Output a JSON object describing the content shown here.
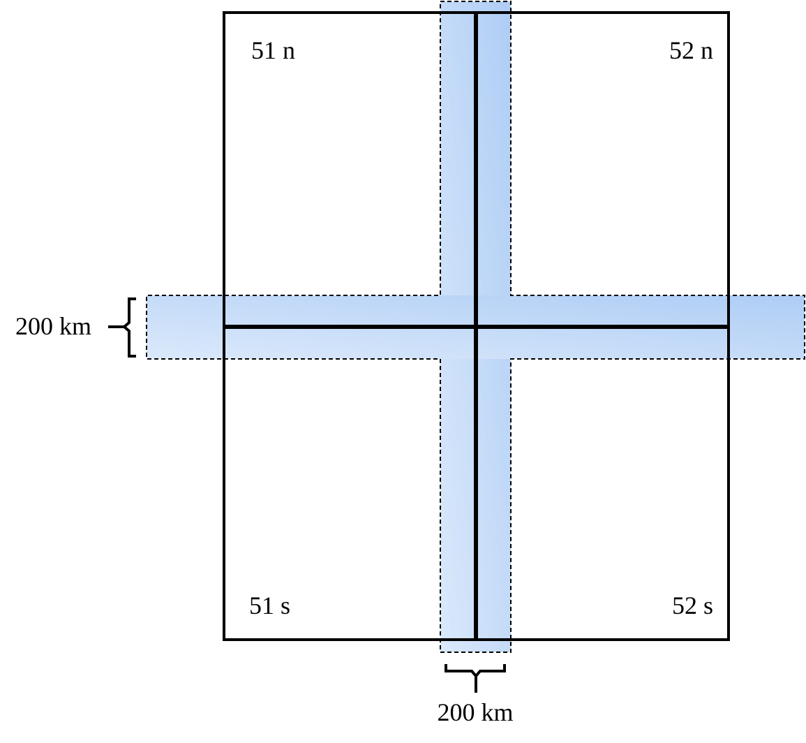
{
  "zones": {
    "top_left": "51 n",
    "top_right": "52 n",
    "bottom_left": "51 s",
    "bottom_right": "52 s"
  },
  "dimensions": {
    "horizontal_band_width": "200 km",
    "vertical_band_width": "200 km"
  },
  "colors": {
    "band_light": "#dbe9fb",
    "band_dark": "#aecdf5",
    "outline": "#000000"
  }
}
